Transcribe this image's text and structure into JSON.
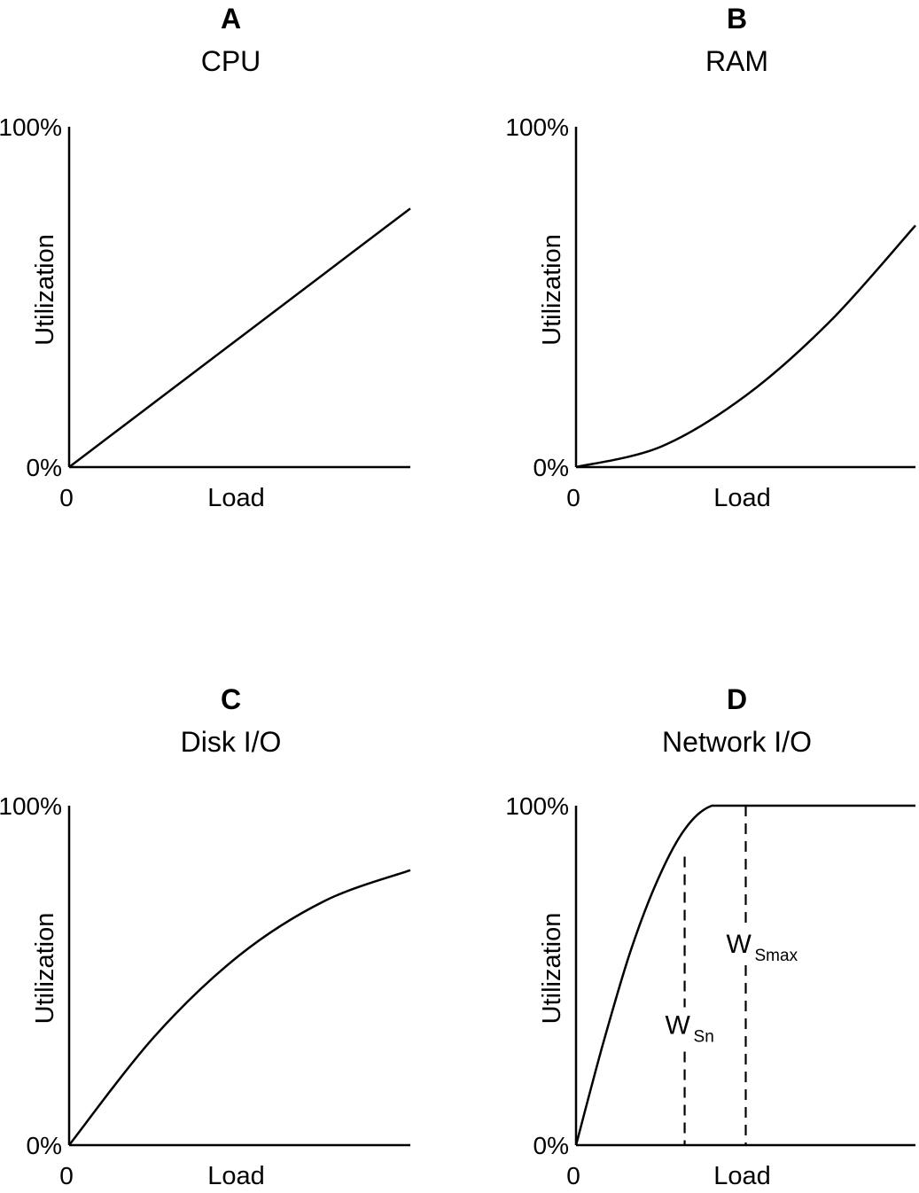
{
  "chart_data": [
    {
      "type": "line",
      "panel": "A",
      "title": "CPU",
      "xlabel": "Load",
      "ylabel": "Utilization",
      "x_tick_labels": [
        "0"
      ],
      "y_tick_labels": [
        "0%",
        "100%"
      ],
      "xlim": [
        0,
        1
      ],
      "ylim": [
        0,
        100
      ],
      "series": [
        {
          "shape": "linear",
          "x": [
            0,
            0.25,
            0.5,
            0.75,
            1.0
          ],
          "y": [
            0,
            19,
            38,
            57,
            76
          ]
        }
      ],
      "markers": []
    },
    {
      "type": "line",
      "panel": "B",
      "title": "RAM",
      "xlabel": "Load",
      "ylabel": "Utilization",
      "x_tick_labels": [
        "0"
      ],
      "y_tick_labels": [
        "0%",
        "100%"
      ],
      "xlim": [
        0,
        1
      ],
      "ylim": [
        0,
        100
      ],
      "series": [
        {
          "shape": "convex",
          "x": [
            0,
            0.25,
            0.5,
            0.75,
            1.0
          ],
          "y": [
            0,
            6,
            21,
            43,
            71
          ]
        }
      ],
      "markers": []
    },
    {
      "type": "line",
      "panel": "C",
      "title": "Disk I/O",
      "xlabel": "Load",
      "ylabel": "Utilization",
      "x_tick_labels": [
        "0"
      ],
      "y_tick_labels": [
        "0%",
        "100%"
      ],
      "xlim": [
        0,
        1
      ],
      "ylim": [
        0,
        100
      ],
      "series": [
        {
          "shape": "concave",
          "x": [
            0,
            0.25,
            0.5,
            0.75,
            1.0
          ],
          "y": [
            0,
            32,
            56,
            72,
            81
          ]
        }
      ],
      "markers": []
    },
    {
      "type": "line",
      "panel": "D",
      "title": "Network I/O",
      "xlabel": "Load",
      "ylabel": "Utilization",
      "x_tick_labels": [
        "0"
      ],
      "y_tick_labels": [
        "0%",
        "100%"
      ],
      "xlim": [
        0,
        1
      ],
      "ylim": [
        0,
        100
      ],
      "series": [
        {
          "shape": "saturating",
          "x": [
            0,
            0.08,
            0.16,
            0.24,
            0.32,
            0.4,
            0.5,
            0.75,
            1.0
          ],
          "y": [
            0,
            30,
            57,
            78,
            93,
            100,
            100,
            100,
            100
          ]
        }
      ],
      "markers": [
        {
          "label": "W",
          "sub": "Sn",
          "x": 0.32,
          "y": 85
        },
        {
          "label": "W",
          "sub": "Smax",
          "x": 0.5,
          "y": 100
        }
      ]
    }
  ]
}
